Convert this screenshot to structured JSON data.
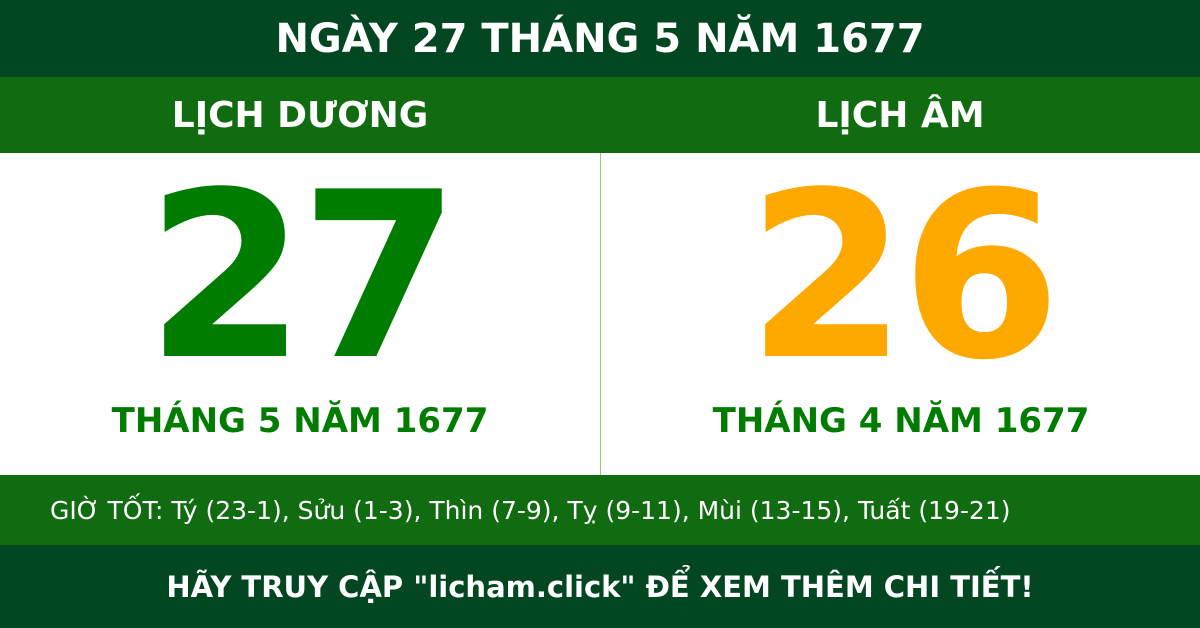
{
  "title": "NGÀY 27 THÁNG 5 NĂM 1677",
  "solar": {
    "label": "LỊCH DƯƠNG",
    "day": "27",
    "month_year": "THÁNG 5 NĂM 1677",
    "color": "#007d00"
  },
  "lunar": {
    "label": "LỊCH ÂM",
    "day": "26",
    "month_year": "THÁNG 4 NĂM 1677",
    "color": "#ffa800"
  },
  "good_hours": "GIỜ TỐT: Tý (23-1), Sửu (1-3), Thìn (7-9), Tỵ (9-11), Mùi (13-15), Tuất (19-21)",
  "footer": "HÃY TRUY CẬP \"licham.click\" ĐỂ XEM THÊM CHI TIẾT!",
  "colors": {
    "dark_green": "#034722",
    "green": "#116b11"
  }
}
